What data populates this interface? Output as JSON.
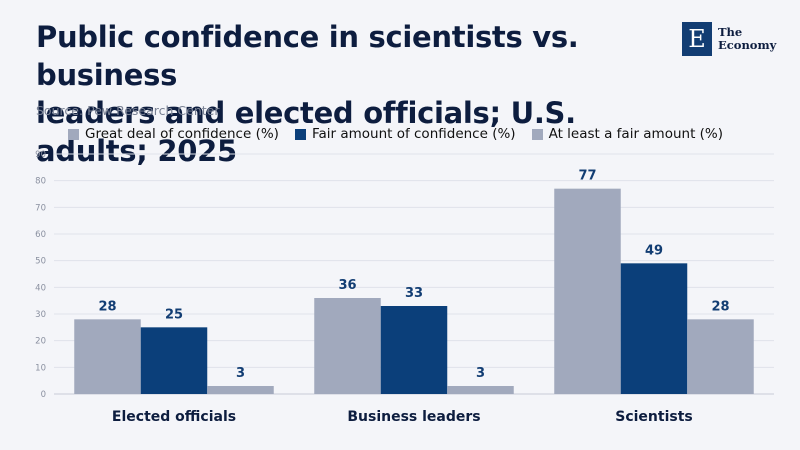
{
  "header": {
    "title_line1": "Public confidence in scientists vs. business",
    "title_line2": "leaders and elected officials; U.S. adults; 2025",
    "source": "Source: Pew Research Center"
  },
  "logo": {
    "mark": "E",
    "line1": "The",
    "line2": "Economy",
    "color": "#123d73"
  },
  "colors": {
    "series_light": "#a1a9bd",
    "series_dark": "#0b3f7a",
    "grid": "#dfe2ea",
    "label": "#123d73",
    "background": "#f4f5f9"
  },
  "chart_data": {
    "type": "bar",
    "categories": [
      "Elected officials",
      "Business leaders",
      "Scientists"
    ],
    "series": [
      {
        "name": "Great deal of confidence (%)",
        "values": [
          28,
          36,
          77
        ],
        "color": "#a1a9bd"
      },
      {
        "name": "Fair amount of confidence (%)",
        "values": [
          25,
          33,
          49
        ],
        "color": "#0b3f7a"
      },
      {
        "name": "At least a fair amount (%)",
        "values": [
          3,
          3,
          28
        ],
        "color": "#a1a9bd"
      }
    ],
    "ylim": [
      0,
      90
    ],
    "yticks": [
      0,
      10,
      20,
      30,
      40,
      50,
      60,
      70,
      80,
      90
    ],
    "grid": true,
    "legend": "top-left",
    "data_labels": true
  }
}
